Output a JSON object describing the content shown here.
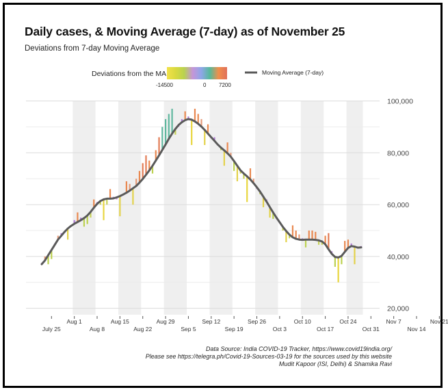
{
  "title": "Daily cases, & Moving Average (7-day) as of November 25",
  "subtitle": "Deviations from 7-day Moving Average",
  "legend": {
    "gradient_title": "Deviations from the MA",
    "gradient_ticks": [
      "-14500",
      "0",
      "7200"
    ],
    "line_label": "Moving Average (7-day)",
    "gradient_colors": [
      "#f2e14a",
      "#d9d93f",
      "#b9d24f",
      "#c595d8",
      "#8ea6e8",
      "#56b99a",
      "#f08f4b",
      "#e0705a"
    ]
  },
  "source": {
    "line1": "Data Source: India COVID-19 Tracker, https://www.covid19india.org/",
    "line2": "Please see https://telegra.ph/Covid-19-Sources-03-19 for the sources used by this website",
    "line3": "Mudit Kapoor (ISI, Delhi) & Shamika Ravi"
  },
  "chart_data": {
    "type": "bar",
    "x_start": "Jul 22",
    "x_tick_labels_top": [
      "Aug 1",
      "Aug 15",
      "Aug 29",
      "Sep 12",
      "Sep 26",
      "Oct 10",
      "Oct 24",
      "Nov 7",
      "Nov 21"
    ],
    "x_tick_labels_bottom": [
      "July 25",
      "Aug 8",
      "Aug 22",
      "Sep 5",
      "Sep 19",
      "Oct 3",
      "Oct 17",
      "Oct 31",
      "Nov 14"
    ],
    "y_ticks": [
      "100,000",
      "80,000",
      "60,000",
      "40,000",
      "20,000"
    ],
    "y_tick_values": [
      100000,
      80000,
      60000,
      40000,
      20000
    ],
    "ylim": [
      17000,
      102000
    ],
    "grid": true,
    "shaded_week_bands": true,
    "series": [
      {
        "name": "Moving Average (7-day)",
        "values": [
          37000,
          38500,
          40500,
          42500,
          44500,
          46500,
          48000,
          49500,
          50800,
          51800,
          52600,
          53300,
          54000,
          54800,
          55800,
          57200,
          58800,
          60300,
          61400,
          62000,
          62300,
          62300,
          62400,
          62800,
          63300,
          63900,
          64600,
          65400,
          66300,
          67200,
          68500,
          69900,
          71500,
          73200,
          75000,
          77000,
          79000,
          81100,
          83200,
          85400,
          87400,
          89200,
          90700,
          91800,
          92600,
          93000,
          92800,
          92100,
          91200,
          90100,
          88800,
          87400,
          86000,
          84600,
          83200,
          82000,
          80900,
          79800,
          78500,
          76800,
          75000,
          73200,
          72000,
          70900,
          69700,
          68300,
          66700,
          65000,
          63100,
          61100,
          59000,
          57000,
          55000,
          53200,
          51400,
          49800,
          48400,
          47400,
          46800,
          46500,
          46400,
          46500,
          46500,
          46500,
          46400,
          46200,
          45800,
          44700,
          42800,
          41000,
          39800,
          39600,
          40200,
          41800,
          43300,
          44000,
          43800,
          43400,
          43500
        ],
        "color": "#555555"
      },
      {
        "name": "Daily cases",
        "values": [
          37500,
          40000,
          37000,
          39000,
          45000,
          48000,
          49000,
          49500,
          46500,
          52000,
          54000,
          57000,
          55000,
          51500,
          52500,
          55000,
          62000,
          61000,
          60000,
          54000,
          60000,
          66000,
          63000,
          62000,
          55500,
          64000,
          69000,
          68000,
          60000,
          70000,
          73000,
          76000,
          79000,
          77000,
          72000,
          81000,
          86000,
          90000,
          93000,
          95000,
          97000,
          87000,
          90000,
          93000,
          96000,
          94000,
          83000,
          97000,
          95000,
          93000,
          83000,
          91000,
          86000,
          86000,
          83000,
          81000,
          75000,
          84000,
          80000,
          73000,
          69000,
          72000,
          70000,
          61000,
          74000,
          70000,
          66000,
          64000,
          59000,
          62000,
          55000,
          54500,
          55000,
          53000,
          50000,
          45500,
          47000,
          52000,
          50000,
          48500,
          47000,
          43500,
          50000,
          50000,
          49500,
          44500,
          44500,
          48000,
          49000,
          42000,
          36000,
          30000,
          37000,
          46000,
          46500,
          45000,
          37000,
          43000,
          44000
        ],
        "deviation_from_ma": [
          500,
          1500,
          -3500,
          -3500,
          500,
          1500,
          1000,
          0,
          -4300,
          200,
          1400,
          3700,
          1000,
          -3300,
          -3300,
          -2200,
          3200,
          700,
          -1400,
          -8000,
          -2300,
          3700,
          600,
          -800,
          -7800,
          100,
          4400,
          2600,
          -6300,
          2800,
          4500,
          6100,
          7500,
          3800,
          -3000,
          4000,
          7000,
          8900,
          9800,
          9600,
          9600,
          -2200,
          -700,
          1200,
          3400,
          1000,
          -9800,
          4900,
          3800,
          2900,
          -5800,
          3600,
          0,
          1400,
          -200,
          -1000,
          -5900,
          4200,
          1500,
          -3800,
          -6000,
          -1200,
          -2000,
          -9900,
          4300,
          1700,
          -700,
          -1000,
          -4100,
          900,
          -4000,
          -2500,
          0,
          -200,
          -1400,
          -4300,
          -1400,
          4600,
          3200,
          2000,
          600,
          -3000,
          3500,
          3500,
          3100,
          -1700,
          -1300,
          3300,
          6200,
          1000,
          -3800,
          -9600,
          -3200,
          4200,
          3200,
          1000,
          -6800,
          -400,
          500
        ]
      }
    ]
  }
}
